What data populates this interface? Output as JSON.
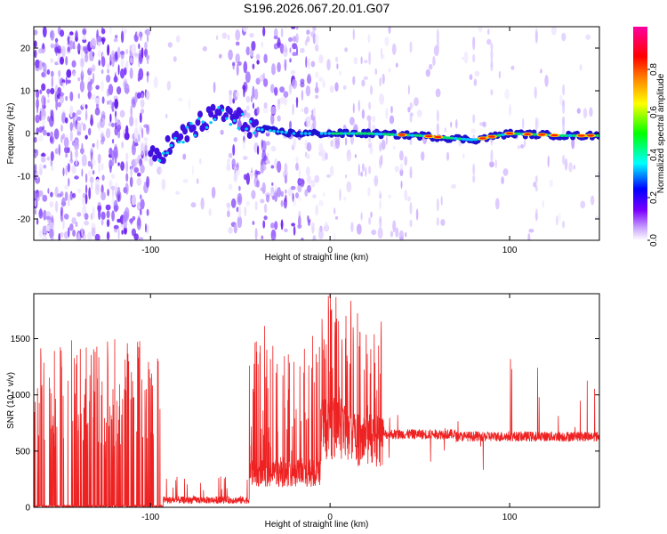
{
  "title": "S196.2026.067.20.01.G07",
  "chart_data": [
    {
      "type": "heatmap",
      "xlabel": "Height of straight line (km)",
      "ylabel": "Frequency (Hz)",
      "xlim": [
        -165,
        150
      ],
      "ylim": [
        -25,
        25
      ],
      "xticks": [
        -100,
        0,
        100
      ],
      "yticks": [
        -20,
        -10,
        0,
        10,
        20
      ],
      "colorbar": {
        "label": "Normalized spectral amplitude",
        "range": [
          0.0,
          1.0
        ],
        "ticks": [
          0.0,
          0.2,
          0.4,
          0.6,
          0.8
        ],
        "tick_labels": [
          "0.0",
          "0.2",
          "0.4",
          "0.6",
          "0.8"
        ],
        "colors": [
          "#ffffff",
          "#c8a0ff",
          "#7a00ff",
          "#0000ff",
          "#00ffff",
          "#00ff00",
          "#ffff00",
          "#ff8000",
          "#ff0000",
          "#ff00a0"
        ]
      },
      "ridge": {
        "x": [
          -100,
          -90,
          -80,
          -70,
          -60,
          -50,
          -40,
          -30,
          -20,
          -10,
          0,
          20,
          50,
          80,
          100,
          130,
          150
        ],
        "y": [
          -6,
          -3,
          0,
          3,
          5,
          3,
          1,
          0.5,
          0,
          0,
          0,
          0,
          -0.5,
          -1.5,
          0,
          -0.5,
          -0.5
        ]
      }
    },
    {
      "type": "line",
      "xlabel": "Height of straight line (km)",
      "ylabel": "SNR (10 * v/v)",
      "xlim": [
        -165,
        150
      ],
      "ylim": [
        0,
        1900
      ],
      "xticks": [
        -100,
        0,
        100
      ],
      "yticks": [
        0,
        500,
        1000,
        1500
      ],
      "color": "#ee2222",
      "segments": [
        {
          "x_range": [
            -165,
            -93
          ],
          "baseline": 0,
          "spike_max": 1500,
          "description": "spikes"
        },
        {
          "x_range": [
            -93,
            -45
          ],
          "baseline": 80,
          "spike_max": 250
        },
        {
          "x_range": [
            -45,
            -5
          ],
          "baseline": 300,
          "spike_max": 1500
        },
        {
          "x_range": [
            -5,
            15
          ],
          "baseline": 700,
          "spike_max": 1880
        },
        {
          "x_range": [
            15,
            30
          ],
          "baseline": 600,
          "spike_max": 1600
        },
        {
          "x_range": [
            30,
            70
          ],
          "baseline": 650,
          "spike_max": 850
        },
        {
          "x_range": [
            70,
            150
          ],
          "baseline": 630,
          "spike_max": 1350
        }
      ]
    }
  ]
}
